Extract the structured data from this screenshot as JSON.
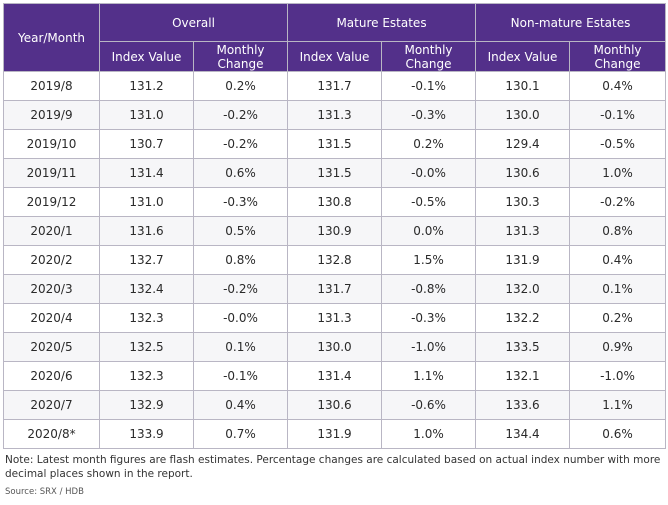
{
  "header": {
    "year_month": "Year/Month",
    "groups": [
      "Overall",
      "Mature Estates",
      "Non-mature Estates"
    ],
    "sub": [
      "Index Value",
      "Monthly Change",
      "Index Value",
      "Monthly Change",
      "Index Value",
      "Monthly Change"
    ]
  },
  "rows": [
    [
      "2019/8",
      "131.2",
      "0.2%",
      "131.7",
      "-0.1%",
      "130.1",
      "0.4%"
    ],
    [
      "2019/9",
      "131.0",
      "-0.2%",
      "131.3",
      "-0.3%",
      "130.0",
      "-0.1%"
    ],
    [
      "2019/10",
      "130.7",
      "-0.2%",
      "131.5",
      "0.2%",
      "129.4",
      "-0.5%"
    ],
    [
      "2019/11",
      "131.4",
      "0.6%",
      "131.5",
      "-0.0%",
      "130.6",
      "1.0%"
    ],
    [
      "2019/12",
      "131.0",
      "-0.3%",
      "130.8",
      "-0.5%",
      "130.3",
      "-0.2%"
    ],
    [
      "2020/1",
      "131.6",
      "0.5%",
      "130.9",
      "0.0%",
      "131.3",
      "0.8%"
    ],
    [
      "2020/2",
      "132.7",
      "0.8%",
      "132.8",
      "1.5%",
      "131.9",
      "0.4%"
    ],
    [
      "2020/3",
      "132.4",
      "-0.2%",
      "131.7",
      "-0.8%",
      "132.0",
      "0.1%"
    ],
    [
      "2020/4",
      "132.3",
      "-0.0%",
      "131.3",
      "-0.3%",
      "132.2",
      "0.2%"
    ],
    [
      "2020/5",
      "132.5",
      "0.1%",
      "130.0",
      "-1.0%",
      "133.5",
      "0.9%"
    ],
    [
      "2020/6",
      "132.3",
      "-0.1%",
      "131.4",
      "1.1%",
      "132.1",
      "-1.0%"
    ],
    [
      "2020/7",
      "132.9",
      "0.4%",
      "130.6",
      "-0.6%",
      "133.6",
      "1.1%"
    ],
    [
      "2020/8*",
      "133.9",
      "0.7%",
      "131.9",
      "1.0%",
      "134.4",
      "0.6%"
    ]
  ],
  "note": "Note: Latest month figures are flash estimates. Percentage changes are calculated based on actual index number with more decimal places shown in the report.",
  "source": "Source: SRX / HDB",
  "colors": {
    "header_bg": "#53308a",
    "header_text": "#ffffff",
    "border": "#b9b6c4"
  }
}
